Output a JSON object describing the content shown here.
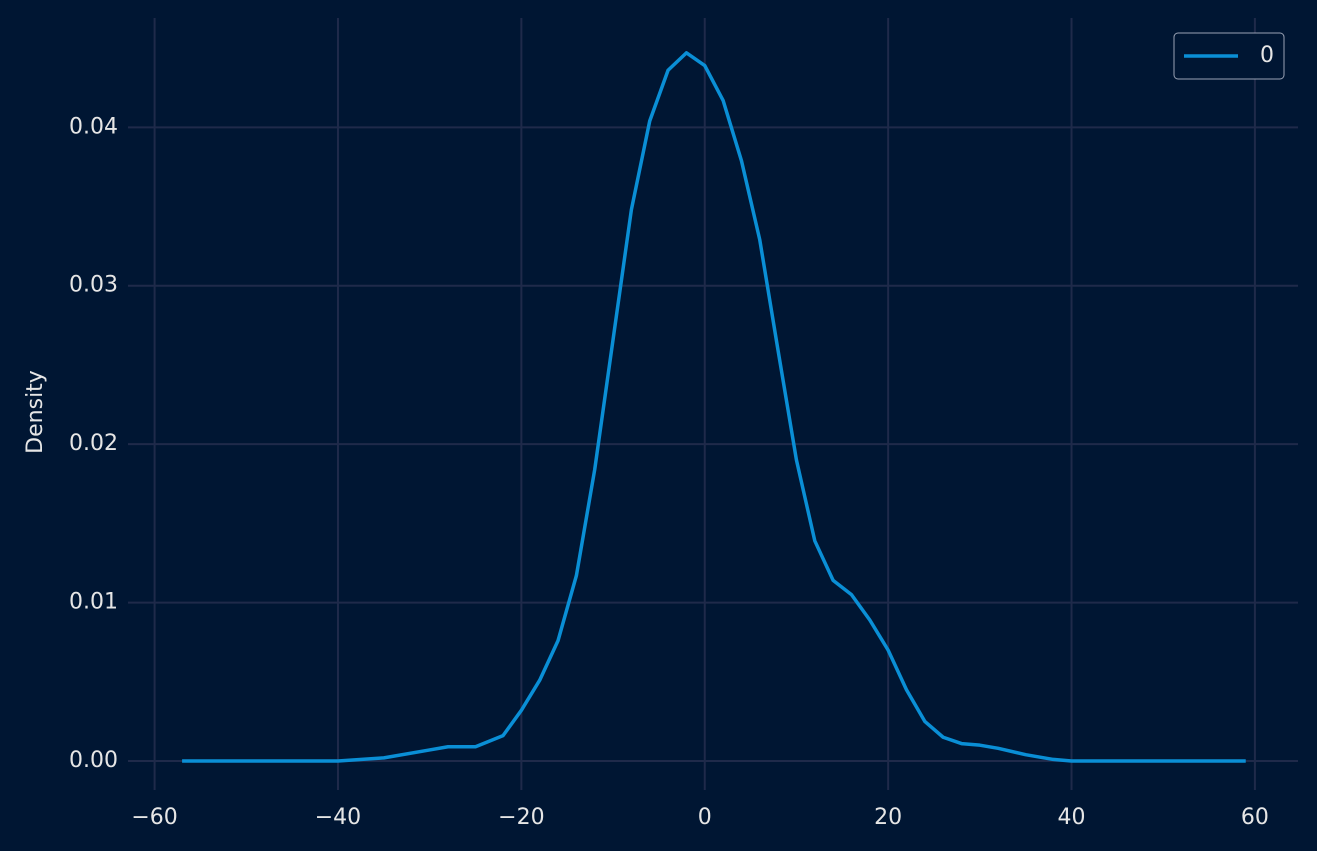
{
  "chart_data": {
    "type": "line",
    "ylabel": "Density",
    "x": [
      -57,
      -50,
      -45,
      -40,
      -35,
      -30,
      -28,
      -25,
      -22,
      -20,
      -18,
      -16,
      -14,
      -12,
      -10,
      -8,
      -6,
      -4,
      -2,
      0,
      2,
      4,
      6,
      8,
      10,
      12,
      14,
      16,
      18,
      20,
      22,
      24,
      26,
      28,
      30,
      32,
      35,
      38,
      40,
      45,
      50,
      59
    ],
    "series": [
      {
        "name": "0",
        "color": "#0a8fd6",
        "values": [
          0,
          0,
          0,
          0,
          0.0002,
          0.0007,
          0.0009,
          0.0009,
          0.0016,
          0.0032,
          0.0051,
          0.0076,
          0.0117,
          0.0184,
          0.0266,
          0.0348,
          0.0404,
          0.0436,
          0.0447,
          0.0439,
          0.0417,
          0.0379,
          0.0329,
          0.0259,
          0.019,
          0.0139,
          0.0114,
          0.0105,
          0.0089,
          0.007,
          0.0045,
          0.0025,
          0.0015,
          0.0011,
          0.001,
          0.0008,
          0.0004,
          0.0001,
          0,
          0,
          0,
          0
        ]
      }
    ],
    "xlim": [
      -62.9,
      64.7
    ],
    "ylim": [
      -0.00183,
      0.0469
    ],
    "xticks": [
      {
        "value": -60,
        "label": "−60"
      },
      {
        "value": -40,
        "label": "−40"
      },
      {
        "value": -20,
        "label": "−20"
      },
      0,
      20,
      40,
      60
    ],
    "yticks": [
      {
        "value": 0,
        "label": "0.00"
      },
      0.01,
      0.02,
      0.03,
      0.04
    ],
    "grid": true,
    "legend": "upper right"
  }
}
